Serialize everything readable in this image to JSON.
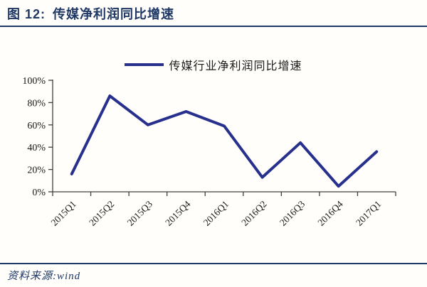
{
  "theme": {
    "accent_navy": "#1F3864",
    "line_navy": "#27308C",
    "axis_gray": "#404040",
    "text_black": "#1a1a1a",
    "background": "#fffefb"
  },
  "header": {
    "figure_label": "图 12:",
    "title": "传媒净利润同比增速"
  },
  "legend": {
    "label": "传媒行业净利润同比增速",
    "line_color": "#27308C"
  },
  "chart_data": {
    "type": "line",
    "title": "",
    "xlabel": "",
    "ylabel": "",
    "categories": [
      "2015Q1",
      "2015Q2",
      "2015Q3",
      "2015Q4",
      "2016Q1",
      "2016Q2",
      "2016Q3",
      "2016Q4",
      "2017Q1"
    ],
    "series": [
      {
        "name": "传媒行业净利润同比增速",
        "values": [
          16,
          86,
          60,
          72,
          59,
          13,
          44,
          5,
          36
        ]
      }
    ],
    "ylim": [
      0,
      100
    ],
    "ytick_step": 20,
    "ytick_labels": [
      "0%",
      "20%",
      "40%",
      "60%",
      "80%",
      "100%"
    ],
    "grid": false,
    "legend_position": "top",
    "x_label_rotation_deg": -45,
    "line_color": "#27308C",
    "axis_color": "#404040"
  },
  "footer": {
    "source": "资料来源:wind"
  }
}
